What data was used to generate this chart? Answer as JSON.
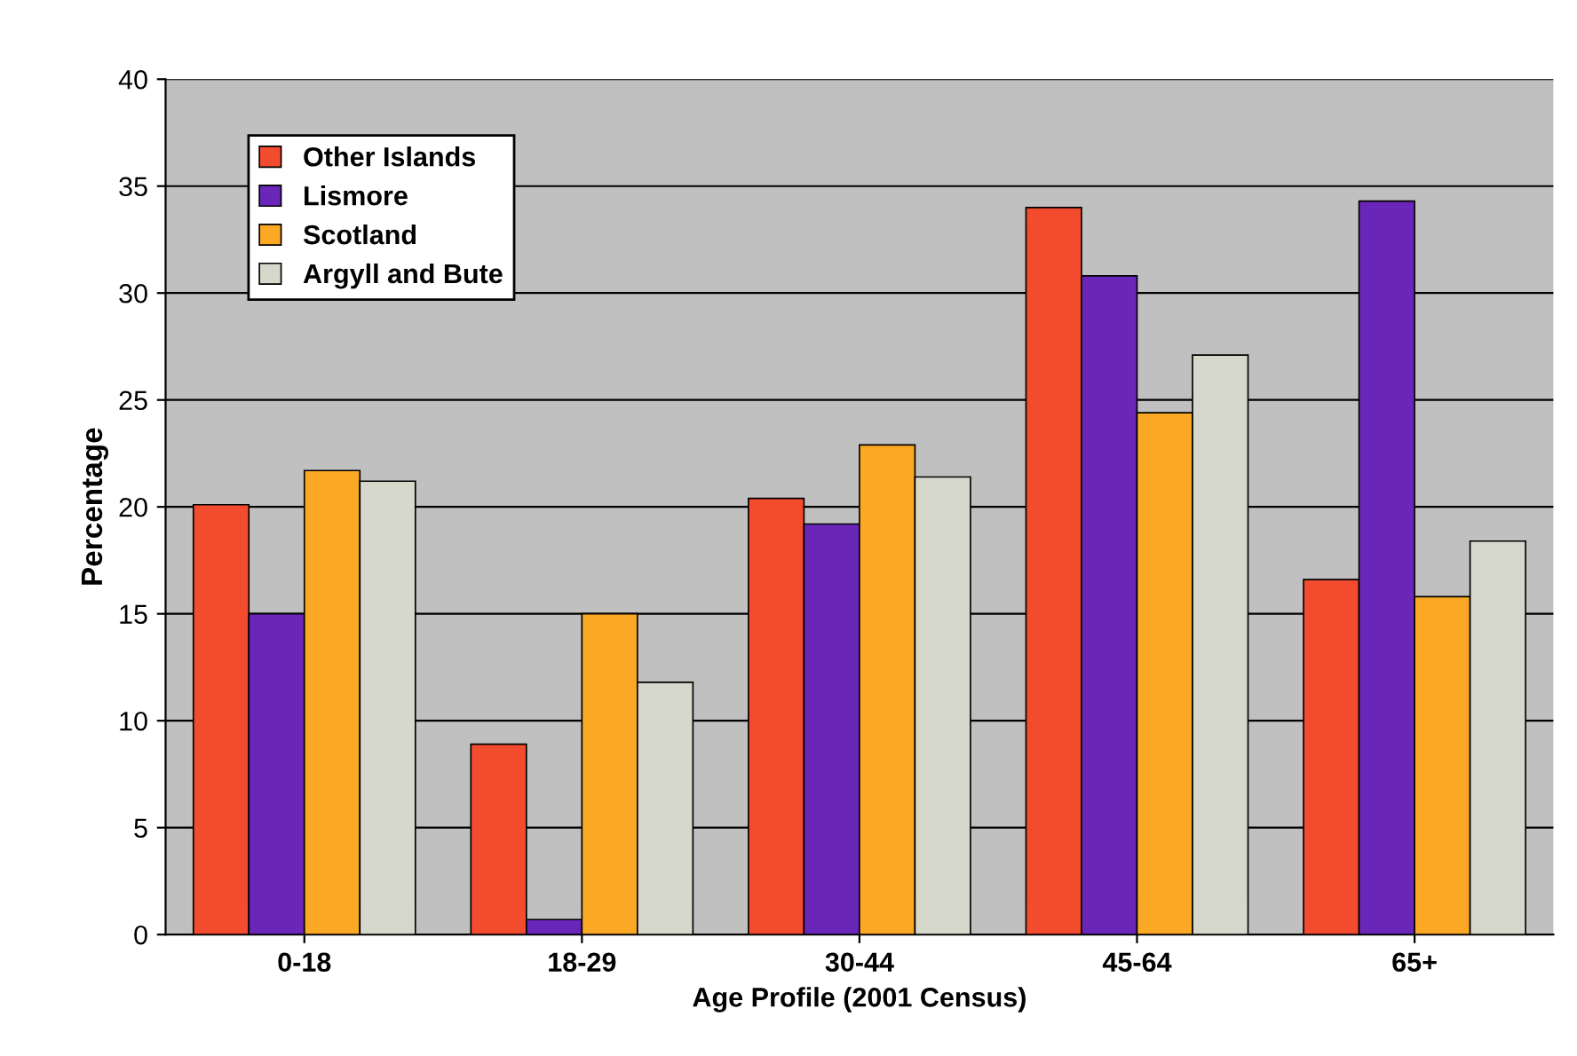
{
  "chart_data": {
    "type": "bar",
    "xlabel": "Age Profile (2001 Census)",
    "ylabel": "Percentage",
    "categories": [
      "0-18",
      "18-29",
      "30-44",
      "45-64",
      "65+"
    ],
    "series": [
      {
        "name": "Other Islands",
        "color": "#f34b2e",
        "values": [
          20.1,
          8.9,
          20.4,
          34.0,
          16.6
        ]
      },
      {
        "name": "Lismore",
        "color": "#6a26b8",
        "values": [
          15.0,
          0.7,
          19.2,
          30.8,
          34.3
        ]
      },
      {
        "name": "Scotland",
        "color": "#fba924",
        "values": [
          21.7,
          15.0,
          22.9,
          24.4,
          15.8
        ]
      },
      {
        "name": "Argyll and Bute",
        "color": "#d6d8cc",
        "values": [
          21.2,
          11.8,
          21.4,
          27.1,
          18.4
        ]
      }
    ],
    "ylim": [
      0,
      40
    ],
    "yticks": [
      0,
      5,
      10,
      15,
      20,
      25,
      30,
      35,
      40
    ],
    "grid": "y",
    "legend": "top left"
  }
}
